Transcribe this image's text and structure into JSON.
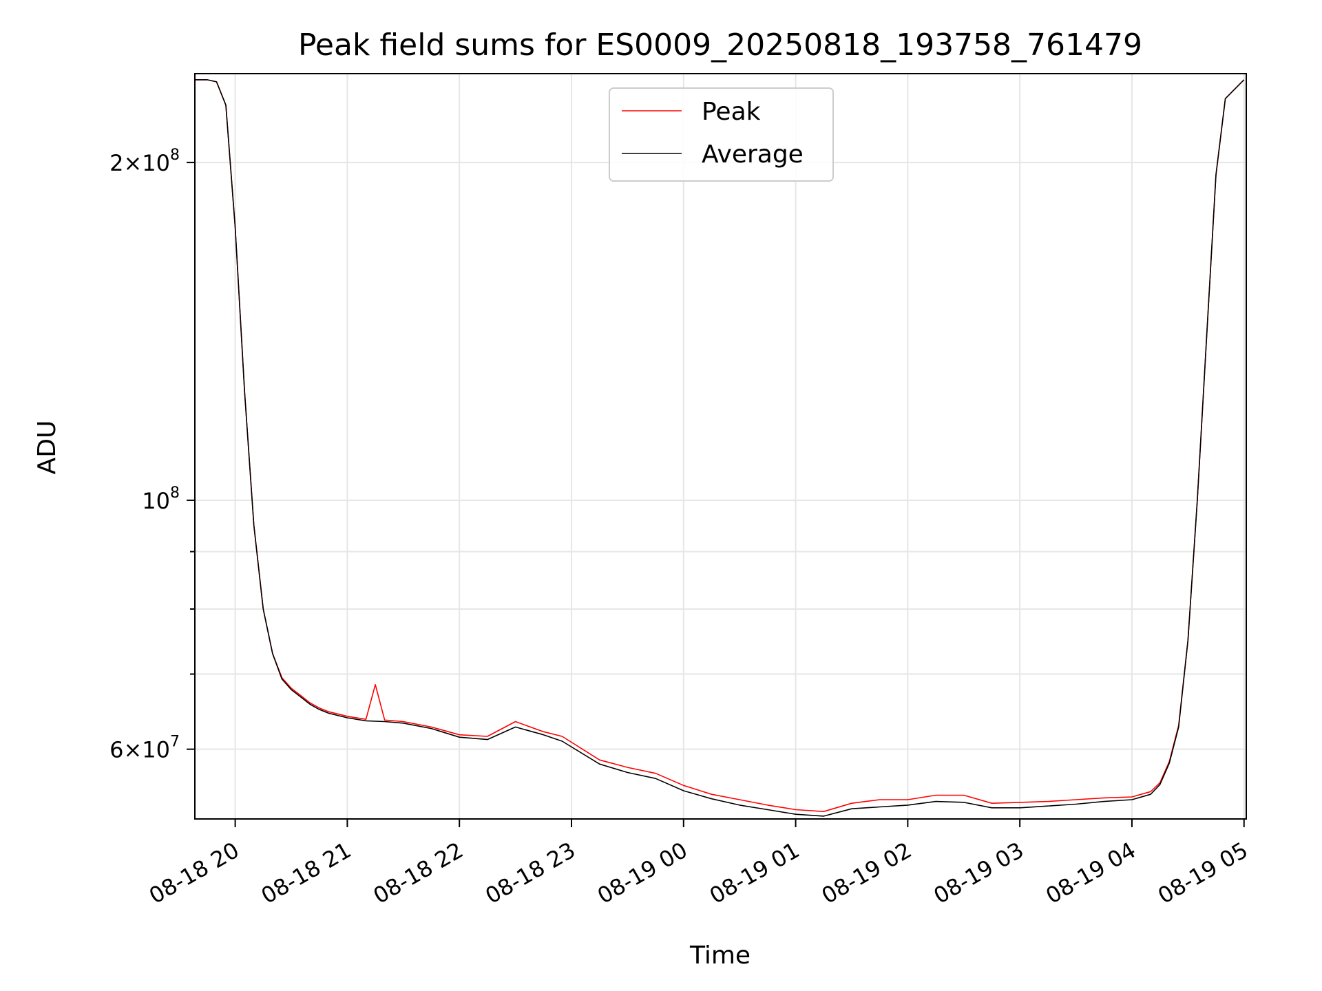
{
  "chart_data": {
    "type": "line",
    "title": "Peak field sums for ES0009_20250818_193758_761479",
    "xlabel": "Time",
    "ylabel": "ADU",
    "x_ticks": [
      "08-18 20",
      "08-18 21",
      "08-18 22",
      "08-18 23",
      "08-19 00",
      "08-19 01",
      "08-19 02",
      "08-19 03",
      "08-19 04",
      "08-19 05"
    ],
    "y_scale": "log",
    "y_tick_labels": [
      {
        "value": 60000000,
        "mantissa": "6×10",
        "exp": "7"
      },
      {
        "value": 100000000,
        "mantissa": "10",
        "exp": "8"
      },
      {
        "value": 200000000,
        "mantissa": "2×10",
        "exp": "8"
      }
    ],
    "y_minor_ticks": [
      70000000,
      80000000,
      90000000
    ],
    "xlim_hours_from_0818_19": [
      0.64,
      10.02
    ],
    "ylim": [
      52000000,
      240000000
    ],
    "grid": true,
    "legend_position": "top-center",
    "colors": {
      "peak": "#ff0000",
      "average": "#000000",
      "grid": "#e6e6e6"
    },
    "series": [
      {
        "name": "Peak",
        "x": [
          "08-18 19:38",
          "08-18 19:45",
          "08-18 19:50",
          "08-18 19:55",
          "08-18 20:00",
          "08-18 20:05",
          "08-18 20:10",
          "08-18 20:15",
          "08-18 20:20",
          "08-18 20:25",
          "08-18 20:30",
          "08-18 20:35",
          "08-18 20:40",
          "08-18 20:45",
          "08-18 20:50",
          "08-18 21:00",
          "08-18 21:10",
          "08-18 21:15",
          "08-18 21:20",
          "08-18 21:30",
          "08-18 21:45",
          "08-18 22:00",
          "08-18 22:15",
          "08-18 22:30",
          "08-18 22:45",
          "08-18 22:55",
          "08-18 23:15",
          "08-18 23:30",
          "08-18 23:45",
          "08-19 00:00",
          "08-19 00:15",
          "08-19 00:30",
          "08-19 00:45",
          "08-19 01:00",
          "08-19 01:15",
          "08-19 01:30",
          "08-19 01:45",
          "08-19 02:00",
          "08-19 02:15",
          "08-19 02:30",
          "08-19 02:45",
          "08-19 03:00",
          "08-19 03:15",
          "08-19 03:30",
          "08-19 03:45",
          "08-19 04:00",
          "08-19 04:10",
          "08-19 04:15",
          "08-19 04:20",
          "08-19 04:25",
          "08-19 04:30",
          "08-19 04:35",
          "08-19 04:40",
          "08-19 04:45",
          "08-19 04:50",
          "08-19 05:00"
        ],
        "values": [
          237000000,
          237000000,
          236000000,
          225000000,
          175000000,
          125000000,
          95000000,
          80000000,
          73000000,
          69500000,
          68000000,
          67000000,
          66000000,
          65300000,
          64800000,
          64200000,
          63800000,
          68500000,
          63700000,
          63500000,
          62800000,
          61800000,
          61600000,
          63500000,
          62200000,
          61600000,
          58700000,
          57800000,
          57100000,
          55700000,
          54700000,
          54100000,
          53500000,
          53000000,
          52800000,
          53700000,
          54100000,
          54100000,
          54600000,
          54600000,
          53700000,
          53800000,
          53900000,
          54100000,
          54300000,
          54400000,
          55000000,
          56000000,
          58500000,
          63000000,
          75000000,
          100000000,
          140000000,
          195000000,
          228000000,
          237000000
        ]
      },
      {
        "name": "Average",
        "x": [
          "08-18 19:38",
          "08-18 19:45",
          "08-18 19:50",
          "08-18 19:55",
          "08-18 20:00",
          "08-18 20:05",
          "08-18 20:10",
          "08-18 20:15",
          "08-18 20:20",
          "08-18 20:25",
          "08-18 20:30",
          "08-18 20:35",
          "08-18 20:40",
          "08-18 20:45",
          "08-18 20:50",
          "08-18 21:00",
          "08-18 21:10",
          "08-18 21:20",
          "08-18 21:30",
          "08-18 21:45",
          "08-18 22:00",
          "08-18 22:15",
          "08-18 22:30",
          "08-18 22:45",
          "08-18 22:55",
          "08-18 23:15",
          "08-18 23:30",
          "08-18 23:45",
          "08-19 00:00",
          "08-19 00:15",
          "08-19 00:30",
          "08-19 00:45",
          "08-19 01:00",
          "08-19 01:15",
          "08-19 01:30",
          "08-19 01:45",
          "08-19 02:00",
          "08-19 02:15",
          "08-19 02:30",
          "08-19 02:45",
          "08-19 03:00",
          "08-19 03:15",
          "08-19 03:30",
          "08-19 03:45",
          "08-19 04:00",
          "08-19 04:10",
          "08-19 04:15",
          "08-19 04:20",
          "08-19 04:25",
          "08-19 04:30",
          "08-19 04:35",
          "08-19 04:40",
          "08-19 04:45",
          "08-19 04:50",
          "08-19 05:00"
        ],
        "values": [
          237000000,
          237000000,
          236000000,
          225000000,
          175000000,
          125000000,
          95000000,
          80000000,
          73000000,
          69300000,
          67800000,
          66800000,
          65800000,
          65100000,
          64600000,
          64000000,
          63600000,
          63500000,
          63300000,
          62600000,
          61500000,
          61200000,
          62800000,
          61800000,
          61000000,
          58200000,
          57200000,
          56500000,
          55100000,
          54200000,
          53500000,
          53000000,
          52500000,
          52300000,
          53100000,
          53300000,
          53500000,
          53900000,
          53800000,
          53200000,
          53200000,
          53400000,
          53600000,
          53900000,
          54100000,
          54700000,
          55800000,
          58300000,
          62800000,
          75000000,
          100000000,
          140000000,
          195000000,
          228000000,
          237000000
        ]
      }
    ]
  }
}
